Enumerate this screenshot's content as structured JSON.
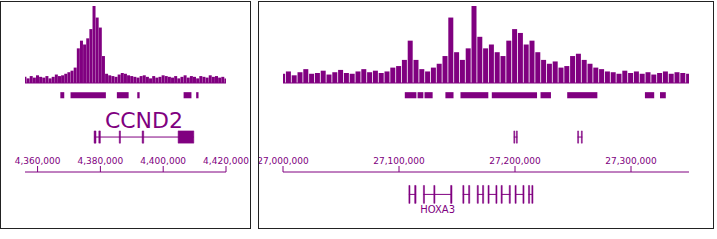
{
  "chart_data": [
    {
      "type": "bar",
      "color": "#800080",
      "tick_labels": "x",
      "xlim": [
        4356000,
        4420000
      ],
      "ylim": [
        0,
        100
      ],
      "xticks": [
        {
          "value": 4360000,
          "label": "4,360,000"
        },
        {
          "value": 4380000,
          "label": "4,380,000"
        },
        {
          "value": 4400000,
          "label": "4,400,000"
        },
        {
          "value": 4420000,
          "label": "4,420,000"
        }
      ],
      "x": [
        4356000,
        4357000,
        4358000,
        4359000,
        4360000,
        4361000,
        4362000,
        4363000,
        4364000,
        4365000,
        4366000,
        4367000,
        4368000,
        4369000,
        4370000,
        4371000,
        4372000,
        4373000,
        4374000,
        4375000,
        4376000,
        4377000,
        4378000,
        4379000,
        4380000,
        4381000,
        4382000,
        4383000,
        4384000,
        4385000,
        4386000,
        4387000,
        4388000,
        4389000,
        4390000,
        4391000,
        4392000,
        4393000,
        4394000,
        4395000,
        4396000,
        4397000,
        4398000,
        4399000,
        4400000,
        4401000,
        4402000,
        4403000,
        4404000,
        4405000,
        4406000,
        4407000,
        4408000,
        4409000,
        4410000,
        4411000,
        4412000,
        4413000,
        4414000,
        4415000,
        4416000,
        4417000,
        4418000,
        4419000,
        4420000
      ],
      "values": [
        8,
        6,
        9,
        7,
        10,
        8,
        7,
        9,
        6,
        8,
        11,
        9,
        10,
        12,
        14,
        16,
        20,
        45,
        55,
        50,
        58,
        70,
        100,
        85,
        72,
        35,
        12,
        10,
        9,
        8,
        11,
        13,
        12,
        10,
        9,
        8,
        7,
        9,
        10,
        8,
        6,
        9,
        7,
        8,
        10,
        9,
        8,
        7,
        9,
        6,
        8,
        10,
        7,
        9,
        8,
        6,
        9,
        8,
        7,
        10,
        8,
        9,
        7,
        8,
        6
      ],
      "peaks": [
        [
          4367250,
          4368500
        ],
        [
          4370500,
          4381750
        ],
        [
          4385250,
          4389000
        ],
        [
          4391750,
          4392500
        ],
        [
          4406500,
          4409000
        ],
        [
          4410500,
          4411250
        ]
      ],
      "genes": [
        {
          "name": "CCND2",
          "start": 4378000,
          "end": 4409750,
          "exons": [
            [
              4378000,
              4378600
            ],
            [
              4379500,
              4380000
            ],
            [
              4386000,
              4386400
            ],
            [
              4393300,
              4393800
            ],
            [
              4404750,
              4409750
            ]
          ]
        }
      ]
    },
    {
      "type": "bar",
      "color": "#800080",
      "tick_labels": "x",
      "xlim": [
        27000000,
        27350000
      ],
      "ylim": [
        0,
        100
      ],
      "xticks": [
        {
          "value": 27000000,
          "label": "27,000,000"
        },
        {
          "value": 27100000,
          "label": "27,100,000"
        },
        {
          "value": 27200000,
          "label": "27,200,000"
        },
        {
          "value": 27300000,
          "label": "27,300,000"
        }
      ],
      "x": [
        27000000,
        27005000,
        27010000,
        27015000,
        27020000,
        27025000,
        27030000,
        27035000,
        27040000,
        27045000,
        27050000,
        27055000,
        27060000,
        27065000,
        27070000,
        27075000,
        27080000,
        27085000,
        27090000,
        27095000,
        27100000,
        27105000,
        27110000,
        27115000,
        27120000,
        27125000,
        27130000,
        27135000,
        27140000,
        27145000,
        27150000,
        27155000,
        27160000,
        27165000,
        27170000,
        27175000,
        27180000,
        27185000,
        27190000,
        27195000,
        27200000,
        27205000,
        27210000,
        27215000,
        27220000,
        27225000,
        27230000,
        27235000,
        27240000,
        27245000,
        27250000,
        27255000,
        27260000,
        27265000,
        27270000,
        27275000,
        27280000,
        27285000,
        27290000,
        27295000,
        27300000,
        27305000,
        27310000,
        27315000,
        27320000,
        27325000,
        27330000,
        27335000,
        27340000,
        27345000,
        27350000
      ],
      "values": [
        12,
        15,
        10,
        14,
        18,
        12,
        13,
        16,
        11,
        14,
        17,
        13,
        12,
        15,
        18,
        14,
        16,
        13,
        15,
        20,
        22,
        30,
        55,
        30,
        18,
        15,
        20,
        25,
        35,
        85,
        40,
        30,
        45,
        100,
        60,
        45,
        50,
        40,
        35,
        55,
        70,
        65,
        50,
        55,
        40,
        30,
        25,
        28,
        20,
        22,
        35,
        38,
        30,
        25,
        20,
        18,
        15,
        14,
        12,
        16,
        13,
        15,
        12,
        14,
        11,
        13,
        15,
        12,
        14,
        13,
        12
      ],
      "peaks": [
        [
          27105000,
          27115000
        ],
        [
          27116000,
          27121000
        ],
        [
          27122000,
          27129000
        ],
        [
          27140000,
          27147000
        ],
        [
          27153000,
          27177000
        ],
        [
          27180000,
          27219000
        ],
        [
          27222000,
          27231000
        ],
        [
          27245000,
          27271000
        ],
        [
          27312000,
          27320000
        ],
        [
          27325000,
          27330000
        ]
      ],
      "genes": [
        {
          "start": 27199000,
          "end": 27202000,
          "exons": [
            [
              27199000,
              27199800
            ],
            [
              27201200,
              27202000
            ]
          ]
        },
        {
          "start": 27254000,
          "end": 27258000,
          "exons": [
            [
              27254000,
              27254800
            ],
            [
              27257200,
              27258000
            ]
          ]
        }
      ],
      "genes_below": [
        {
          "start": 27108500,
          "end": 27114700,
          "exons": [
            [
              27108500,
              27109500
            ],
            [
              27113500,
              27114700
            ]
          ]
        },
        {
          "name": "HOXA3",
          "start": 27121000,
          "end": 27145700,
          "exons": [
            [
              27121000,
              27122000
            ],
            [
              27130000,
              27131000
            ],
            [
              27144500,
              27145700
            ]
          ]
        },
        {
          "start": 27155000,
          "end": 27161000,
          "exons": [
            [
              27155000,
              27156000
            ],
            [
              27160000,
              27161000
            ]
          ]
        },
        {
          "start": 27167400,
          "end": 27173000,
          "exons": [
            [
              27167400,
              27168400
            ],
            [
              27172000,
              27173000
            ]
          ]
        },
        {
          "start": 27176700,
          "end": 27184500,
          "exons": [
            [
              27176700,
              27177700
            ],
            [
              27183500,
              27184500
            ]
          ]
        },
        {
          "start": 27188000,
          "end": 27196000,
          "exons": [
            [
              27188000,
              27189000
            ],
            [
              27195000,
              27196000
            ]
          ]
        },
        {
          "start": 27200000,
          "end": 27207800,
          "exons": [
            [
              27200000,
              27201000
            ],
            [
              27206800,
              27207800
            ]
          ]
        },
        {
          "start": 27211600,
          "end": 27215500,
          "exons": [
            [
              27211600,
              27212600
            ],
            [
              27214500,
              27215500
            ]
          ]
        }
      ]
    }
  ]
}
